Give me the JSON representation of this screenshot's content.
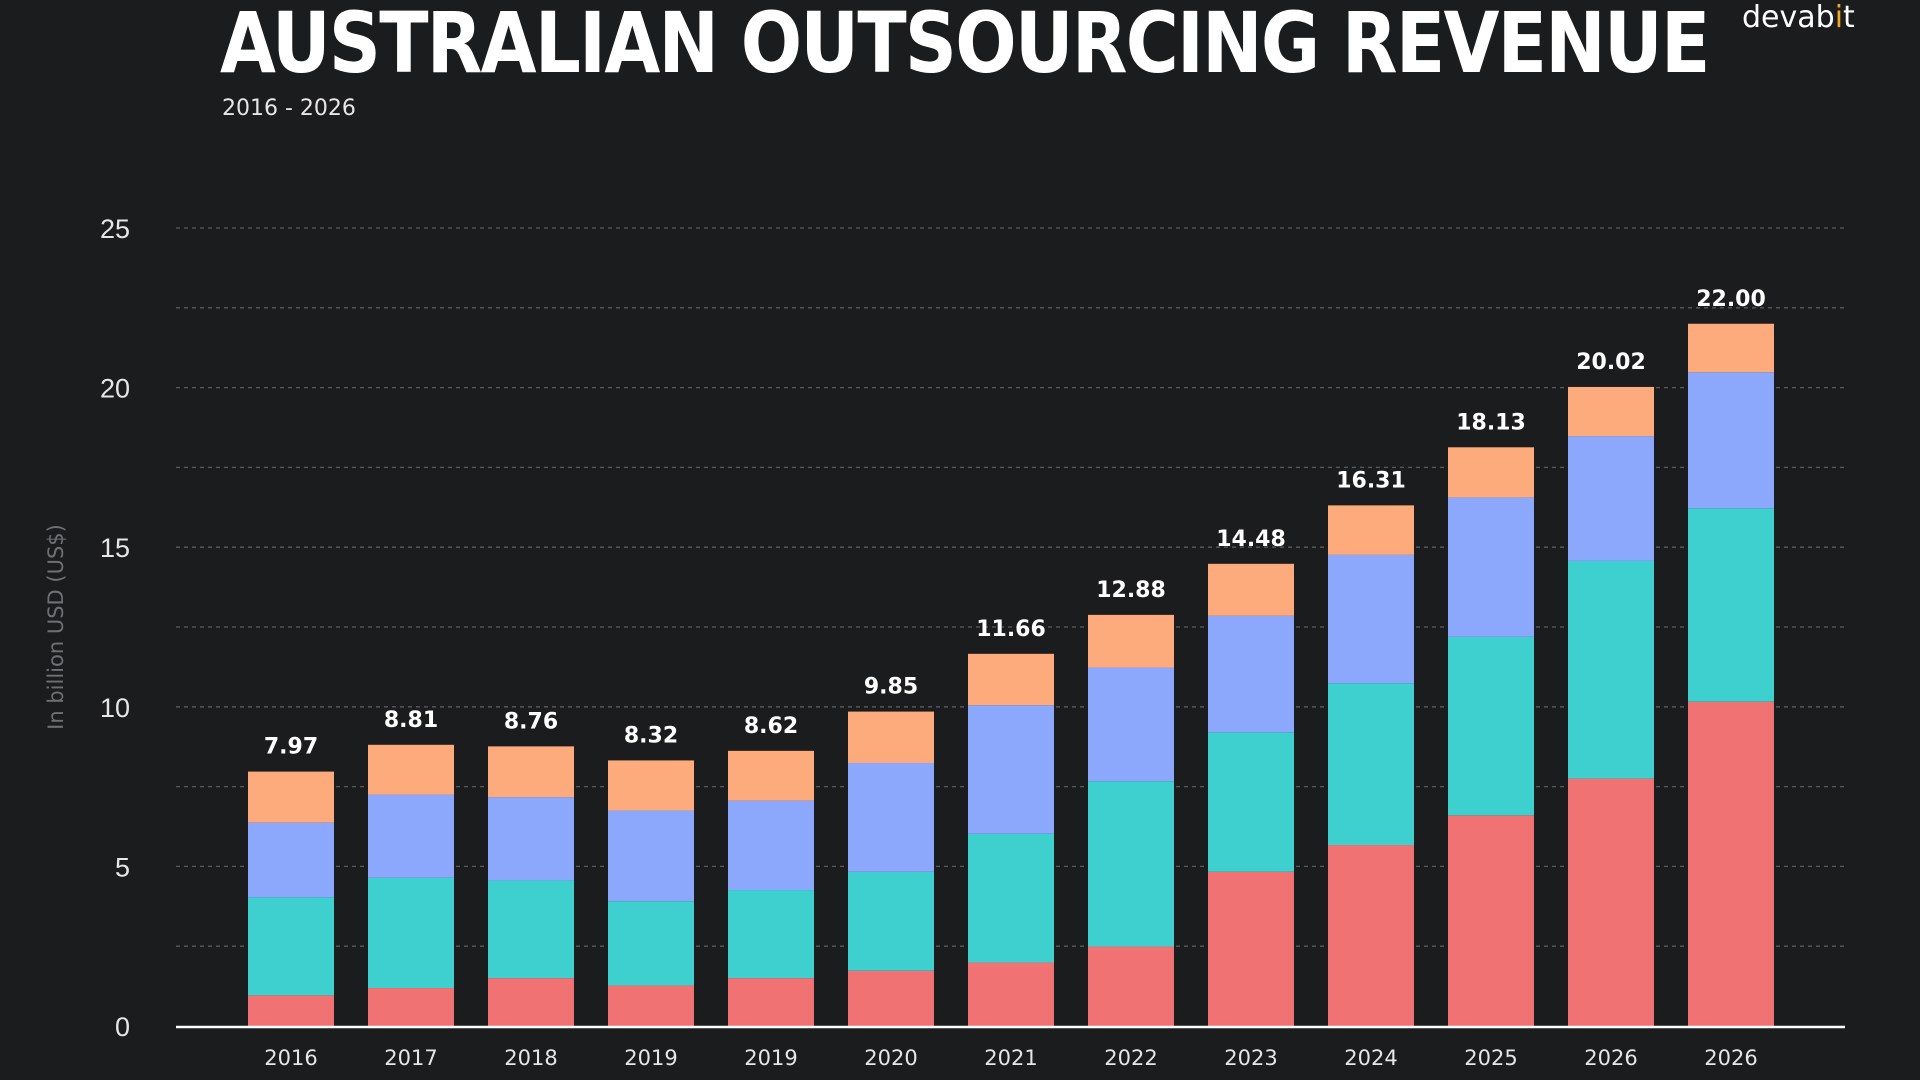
{
  "header": {
    "title": "AUSTRALIAN OUTSOURCING REVENUE",
    "subtitle": "2016 - 2026",
    "logo": "devabit"
  },
  "chart_data": {
    "type": "bar",
    "stacked": true,
    "title": "AUSTRALIAN OUTSOURCING REVENUE",
    "subtitle": "2016 - 2026",
    "xlabel": "",
    "ylabel": "In billion USD (US$)",
    "ylim": [
      0,
      25
    ],
    "yticks": [
      0,
      5,
      10,
      15,
      20,
      25
    ],
    "grid": true,
    "categories": [
      "2016",
      "2017",
      "2018",
      "2019",
      "2019",
      "2020",
      "2021",
      "2022",
      "2023",
      "2024",
      "2025",
      "2026",
      "2026"
    ],
    "totals": [
      7.97,
      8.81,
      8.76,
      8.32,
      8.62,
      9.85,
      11.66,
      12.88,
      14.48,
      16.31,
      18.13,
      20.02,
      22.0
    ],
    "total_labels": [
      "7.97",
      "8.81",
      "8.76",
      "8.32",
      "8.62",
      "9.85",
      "11.66",
      "12.88",
      "14.48",
      "16.31",
      "18.13",
      "20.02",
      "22.00"
    ],
    "series": [
      {
        "color": "#f07272",
        "values": [
          0.96,
          1.19,
          1.5,
          1.27,
          1.5,
          1.73,
          1.99,
          2.49,
          4.83,
          5.67,
          6.6,
          7.75,
          10.16
        ]
      },
      {
        "color": "#3ecfcf",
        "values": [
          3.07,
          3.45,
          3.06,
          2.64,
          2.76,
          3.1,
          4.03,
          5.18,
          4.37,
          5.07,
          5.59,
          6.82,
          6.06
        ]
      },
      {
        "color": "#8ba8fd",
        "values": [
          2.34,
          2.61,
          2.61,
          2.84,
          2.8,
          3.41,
          4.03,
          3.56,
          3.65,
          4.02,
          4.37,
          3.91,
          4.26
        ]
      },
      {
        "color": "#fdab7c",
        "values": [
          1.6,
          1.56,
          1.59,
          1.57,
          1.56,
          1.61,
          1.61,
          1.65,
          1.63,
          1.55,
          1.57,
          1.54,
          1.52
        ]
      }
    ]
  }
}
